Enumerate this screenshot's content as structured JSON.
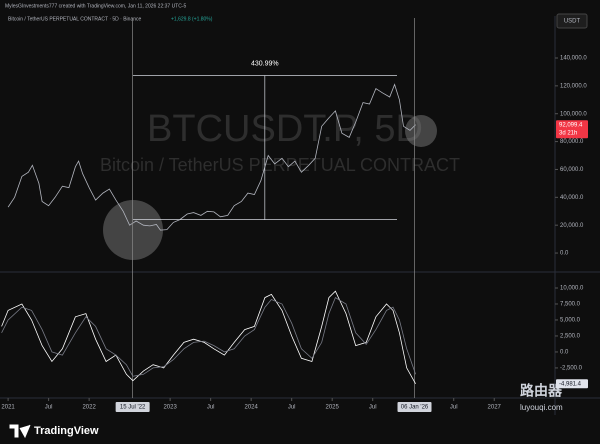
{
  "header": {
    "credit": "MylesGInvestments777 created with TradingView.com, Jan 11, 2026 22:37 UTC-5",
    "symbol": "Bitcoin / TetherUS PERPETUAL CONTRACT · 5D · Binance",
    "change": "+1,629.8 (+1.80%)"
  },
  "watermark": {
    "symbol": "BTCUSDT.P, 5D",
    "description": "Bitcoin / TetherUS PERPETUAL CONTRACT"
  },
  "chart_data": [
    {
      "type": "line",
      "currency": "USDT",
      "color": "#b2b5be",
      "x": [
        2021.0,
        2021.08,
        2021.17,
        2021.25,
        2021.3,
        2021.38,
        2021.42,
        2021.5,
        2021.58,
        2021.67,
        2021.75,
        2021.83,
        2021.87,
        2021.92,
        2022.0,
        2022.08,
        2022.17,
        2022.25,
        2022.33,
        2022.42,
        2022.5,
        2022.58,
        2022.67,
        2022.75,
        2022.83,
        2022.88,
        2022.96,
        2023.04,
        2023.12,
        2023.21,
        2023.29,
        2023.38,
        2023.46,
        2023.54,
        2023.62,
        2023.71,
        2023.79,
        2023.88,
        2023.96,
        2024.04,
        2024.12,
        2024.21,
        2024.29,
        2024.38,
        2024.46,
        2024.54,
        2024.62,
        2024.71,
        2024.79,
        2024.87,
        2024.96,
        2025.04,
        2025.12,
        2025.21,
        2025.29,
        2025.38,
        2025.46,
        2025.54,
        2025.62,
        2025.71,
        2025.77,
        2025.83,
        2025.88,
        2025.96,
        2026.03
      ],
      "values": [
        33000,
        40000,
        55000,
        58000,
        63000,
        50000,
        37000,
        34000,
        40000,
        48000,
        47000,
        62000,
        66000,
        57000,
        47000,
        38000,
        43000,
        46000,
        38000,
        30000,
        20000,
        23000,
        20000,
        19500,
        20500,
        16500,
        16800,
        22000,
        24000,
        28000,
        29000,
        27000,
        30000,
        29500,
        26000,
        27000,
        34000,
        37000,
        43000,
        42000,
        52000,
        70000,
        64000,
        68000,
        62000,
        66000,
        58000,
        63000,
        68000,
        91000,
        97000,
        102000,
        86000,
        83000,
        94000,
        108000,
        107000,
        118000,
        115000,
        112000,
        121000,
        110000,
        91000,
        88000,
        92099.4
      ],
      "last_value_label": "92,099.4",
      "countdown": "3d 21h",
      "xlim": [
        2020.9,
        2027.75
      ],
      "ylim": [
        -13600,
        168700
      ],
      "yticks": [
        {
          "value": 0,
          "label": "0.0"
        },
        {
          "value": 20000,
          "label": "20,000.0"
        },
        {
          "value": 40000,
          "label": "40,000.0"
        },
        {
          "value": 60000,
          "label": "60,000.0"
        },
        {
          "value": 80000,
          "label": "80,000.0"
        },
        {
          "value": 100000,
          "label": "100,000.0"
        },
        {
          "value": 120000,
          "label": "120,000.0"
        },
        {
          "value": 140000,
          "label": "140,000.0"
        }
      ],
      "measure": {
        "label": "430.99%",
        "x": [
          2022.537,
          2025.8
        ],
        "y": [
          24000,
          127438
        ]
      }
    },
    {
      "type": "line",
      "x": [
        2020.92,
        2021.0,
        2021.17,
        2021.29,
        2021.42,
        2021.54,
        2021.67,
        2021.83,
        2021.96,
        2022.08,
        2022.21,
        2022.33,
        2022.46,
        2022.54,
        2022.67,
        2022.79,
        2022.92,
        2023.04,
        2023.17,
        2023.29,
        2023.42,
        2023.54,
        2023.67,
        2023.79,
        2023.92,
        2024.04,
        2024.17,
        2024.25,
        2024.38,
        2024.5,
        2024.62,
        2024.75,
        2024.87,
        2024.96,
        2025.04,
        2025.17,
        2025.29,
        2025.42,
        2025.54,
        2025.67,
        2025.75,
        2025.83,
        2025.92,
        2026.03
      ],
      "series": [
        {
          "color": "#ffffff",
          "values": [
            4000,
            6500,
            7500,
            5000,
            1000,
            -1500,
            500,
            5500,
            6000,
            2000,
            -1500,
            -500,
            -3500,
            -4500,
            -3000,
            -2000,
            -2500,
            -500,
            1500,
            2000,
            1500,
            500,
            -500,
            1500,
            3500,
            4000,
            8500,
            9000,
            6500,
            2500,
            -1000,
            -1500,
            4000,
            8500,
            9500,
            6000,
            1000,
            1500,
            5500,
            7500,
            6500,
            3000,
            -2500,
            -4981.4
          ]
        },
        {
          "color": "#787b86",
          "values": [
            3000,
            5000,
            7000,
            6500,
            3500,
            0,
            -500,
            3000,
            5500,
            4000,
            500,
            -500,
            -2000,
            -3800,
            -3500,
            -2500,
            -2300,
            -1200,
            500,
            1500,
            1700,
            1000,
            0,
            500,
            2500,
            3500,
            7000,
            8200,
            7500,
            4500,
            500,
            -1000,
            1500,
            6000,
            8500,
            7500,
            3000,
            1200,
            3500,
            6500,
            7000,
            5000,
            500,
            -3500
          ]
        }
      ],
      "last_value_label": "-4,981.4",
      "xlim": [
        2020.9,
        2027.75
      ],
      "ylim": [
        -7200,
        12500
      ],
      "yticks": [
        {
          "value": -2500,
          "label": "-2,500.0"
        },
        {
          "value": 0,
          "label": "0.0"
        },
        {
          "value": 2500,
          "label": "2,500.0"
        },
        {
          "value": 5000,
          "label": "5,000.0"
        },
        {
          "value": 7500,
          "label": "7,500.0"
        },
        {
          "value": 10000,
          "label": "10,000.0"
        }
      ],
      "xticks": [
        {
          "value": 2021,
          "label": "2021"
        },
        {
          "value": 2021.5,
          "label": "Jul"
        },
        {
          "value": 2022,
          "label": "2022"
        },
        {
          "value": 2022.537,
          "label": "15 Jul '22",
          "highlight": true
        },
        {
          "value": 2023,
          "label": "2023"
        },
        {
          "value": 2023.5,
          "label": "Jul"
        },
        {
          "value": 2024,
          "label": "2024"
        },
        {
          "value": 2024.5,
          "label": "Jul"
        },
        {
          "value": 2025,
          "label": "2025"
        },
        {
          "value": 2025.5,
          "label": "Jul"
        },
        {
          "value": 2026.016,
          "label": "06 Jan '26",
          "highlight": true
        },
        {
          "value": 2026.5,
          "label": "Jul"
        },
        {
          "value": 2027,
          "label": "2027"
        }
      ]
    }
  ],
  "footer": {
    "brand": "TradingView",
    "site": "路由器",
    "site_url": "luyouqi.com"
  }
}
